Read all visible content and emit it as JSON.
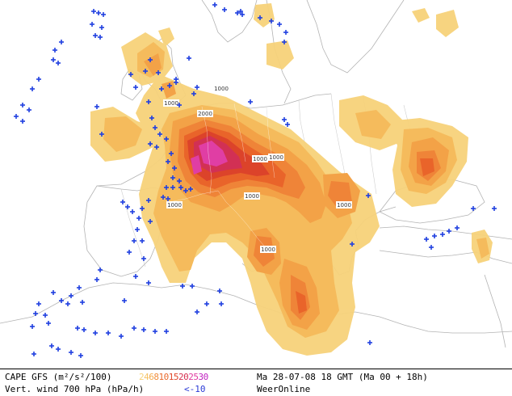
{
  "legend": {
    "cape_title": "CAPE GFS (m²/s²/100)",
    "cape_scale": [
      {
        "label": "2",
        "color": "#f7d27a"
      },
      {
        "label": "4",
        "color": "#f5c060"
      },
      {
        "label": "6",
        "color": "#f4a94a"
      },
      {
        "label": "8",
        "color": "#f08c3a"
      },
      {
        "label": "10",
        "color": "#ea6a2c"
      },
      {
        "label": "15",
        "color": "#e0482a"
      },
      {
        "label": "20",
        "color": "#d63050"
      },
      {
        "label": "25",
        "color": "#e03aa0"
      },
      {
        "label": "30",
        "color": "#c020c0"
      }
    ],
    "wind_title": "Vert. wind 700 hPa (hPa/h)",
    "wind_threshold": "<-10",
    "valid_time": "Ma 28-07-08 18 GMT (Ma 00 + 18h)",
    "source": "WeerOnline"
  },
  "map_labels": [
    "1000",
    "1000",
    "2000",
    "1000",
    "1000",
    "1000",
    "1000",
    "1000",
    "1000"
  ],
  "colors": {
    "land": "#ffffff",
    "sea": "#ffffff",
    "coast": "#b8b8b8",
    "border": "#c8c8c8",
    "cross": "#1f3fe0"
  }
}
